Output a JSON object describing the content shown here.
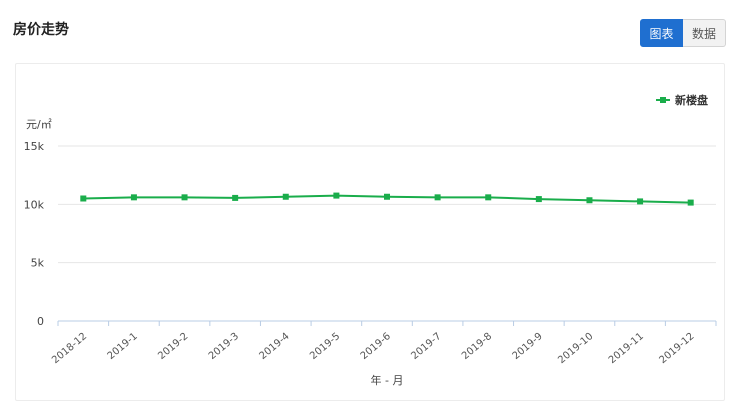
{
  "page": {
    "title": "房价走势"
  },
  "toggle": {
    "chart_label": "图表",
    "data_label": "数据"
  },
  "colors": {
    "accent": "#1f6fd0",
    "series": "#1aad4b"
  },
  "chart_data": {
    "type": "line",
    "categories": [
      "2018-12",
      "2019-1",
      "2019-2",
      "2019-3",
      "2019-4",
      "2019-5",
      "2019-6",
      "2019-7",
      "2019-8",
      "2019-9",
      "2019-10",
      "2019-11",
      "2019-12"
    ],
    "series": [
      {
        "name": "新楼盘",
        "values": [
          10500,
          10600,
          10600,
          10550,
          10650,
          10750,
          10650,
          10600,
          10600,
          10450,
          10350,
          10250,
          10150
        ]
      }
    ],
    "xlabel": "年 - 月",
    "ylabel": "元/㎡",
    "ylim": [
      0,
      15000
    ],
    "yticks": [
      {
        "value": 0,
        "label": "0"
      },
      {
        "value": 5000,
        "label": "5k"
      },
      {
        "value": 10000,
        "label": "10k"
      },
      {
        "value": 15000,
        "label": "15k"
      }
    ],
    "grid": true,
    "legend": "top-right"
  }
}
